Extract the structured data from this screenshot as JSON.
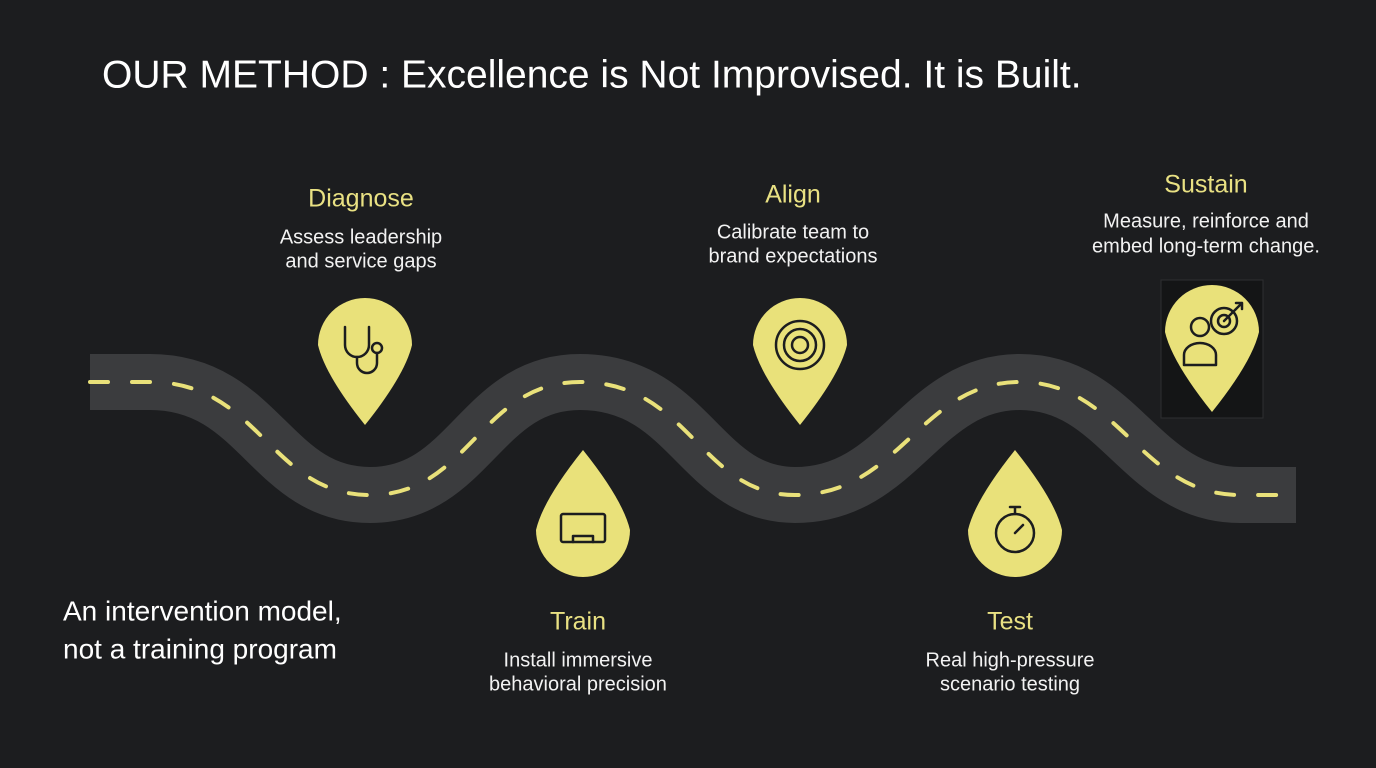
{
  "header": {
    "title": "OUR METHOD :  Excellence is Not Improvised. It is Built."
  },
  "tagline": {
    "lines": [
      "An intervention model,",
      "not a training program"
    ]
  },
  "steps": [
    {
      "title": "Diagnose",
      "description": [
        "Assess leadership",
        "and service gaps"
      ]
    },
    {
      "title": "Train",
      "description": [
        "Install immersive",
        "behavioral precision"
      ]
    },
    {
      "title": "Align",
      "description": [
        "Calibrate team to",
        "brand expectations"
      ]
    },
    {
      "title": "Test",
      "description": [
        "Real high-pressure",
        "scenario testing"
      ]
    },
    {
      "title": "Sustain",
      "description": [
        "Measure, reinforce and",
        "embed long-term change."
      ]
    }
  ]
}
